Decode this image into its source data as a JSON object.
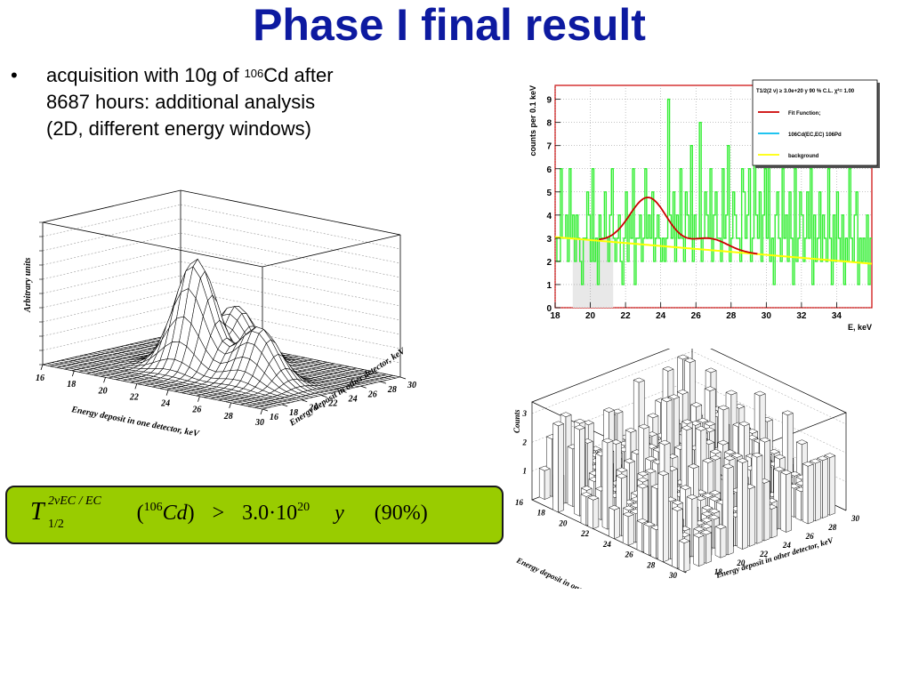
{
  "slide": {
    "title": "Phase I final result",
    "bullet_symbol": "•",
    "bullet_line1_a": "acquisition with 10g of ",
    "bullet_line1_sup": "106",
    "bullet_line1_b": "Cd after",
    "bullet_line2": "8687 hours: additional analysis",
    "bullet_line3": "(2D, different energy windows)"
  },
  "formula": {
    "T": "T",
    "sup": "2νEC / EC",
    "sub": "1/2",
    "open": "(",
    "mass": "106",
    "element": "Cd",
    "close": ")",
    "rel": ">",
    "value": "3.0·10",
    "exponent": "20",
    "unit": "y",
    "cl": "(90%)",
    "box_color": "#99cc00"
  },
  "chart_data": [
    {
      "type": "surface",
      "name": "simulated-signal-surface",
      "xlabel": "Energy deposit in one detector, keV",
      "ylabel": "Energy deposit in other detector, keV",
      "zlabel": "Arbitrary units",
      "x_ticks": [
        "16",
        "18",
        "20",
        "22",
        "24",
        "26",
        "28",
        "30"
      ],
      "y_ticks": [
        "16",
        "18",
        "20",
        "22",
        "24",
        "26",
        "28",
        "30"
      ],
      "xlim": [
        16,
        30
      ],
      "ylim": [
        16,
        30
      ],
      "peaks": [
        {
          "x": 22,
          "y": 22,
          "height": 1.0
        },
        {
          "x": 22,
          "y": 26,
          "height": 0.5
        },
        {
          "x": 26,
          "y": 22,
          "height": 0.5
        }
      ],
      "surface_color": "#000000"
    },
    {
      "type": "histogram",
      "name": "energy-spectrum-fit",
      "xlabel": "E, keV",
      "ylabel": "counts per 0.1 keV",
      "xlim": [
        18,
        36
      ],
      "ylim": [
        0,
        9.6
      ],
      "x_ticks": [
        "18",
        "20",
        "22",
        "24",
        "26",
        "28",
        "30",
        "32",
        "34"
      ],
      "y_ticks": [
        "0",
        "1",
        "2",
        "3",
        "4",
        "5",
        "6",
        "7",
        "8",
        "9"
      ],
      "bin_width": 0.1,
      "counts": [
        3,
        2,
        2,
        6,
        3,
        3,
        4,
        2,
        6,
        3,
        4,
        2,
        4,
        3,
        2,
        1,
        3,
        3,
        5,
        4,
        2,
        6,
        2,
        3,
        1,
        4,
        3,
        3,
        5,
        3,
        2,
        4,
        6,
        3,
        2,
        3,
        4,
        2,
        1,
        3,
        5,
        2,
        4,
        3,
        6,
        1,
        3,
        3,
        4,
        2,
        3,
        6,
        3,
        4,
        3,
        5,
        2,
        3,
        4,
        3,
        2,
        3,
        2,
        3,
        9,
        4,
        3,
        5,
        2,
        4,
        3,
        6,
        3,
        2,
        5,
        4,
        3,
        7,
        2,
        4,
        3,
        3,
        8,
        2,
        3,
        5,
        4,
        3,
        6,
        2,
        4,
        5,
        3,
        3,
        2,
        6,
        3,
        4,
        7,
        2,
        3,
        5,
        4,
        3,
        3,
        2,
        6,
        5,
        3,
        4,
        6,
        2,
        3,
        8,
        4,
        3,
        5,
        2,
        4,
        6,
        3,
        7,
        2,
        3,
        1,
        4,
        5,
        3,
        2,
        6,
        3,
        4,
        2,
        5,
        3,
        1,
        6,
        2,
        3,
        5,
        4,
        2,
        3,
        5,
        3,
        6,
        1,
        4,
        2,
        3,
        5,
        2,
        4,
        3,
        2,
        6,
        3,
        1,
        4,
        2,
        5,
        3,
        2,
        4,
        1,
        3,
        2,
        6,
        3,
        2,
        4,
        5,
        1,
        3,
        2,
        3,
        2,
        4,
        1,
        3
      ],
      "series": [
        {
          "name": "Fit Function;",
          "color": "#cc0000",
          "baseline_start": 3.05,
          "baseline_end": 1.9,
          "components": [
            {
              "center": 23.3,
              "sigma": 1.05,
              "amp": 2.05
            },
            {
              "center": 26.8,
              "sigma": 1.0,
              "amp": 0.5
            }
          ]
        },
        {
          "name": "106Cd(EC,EC) 106Pd",
          "color": "#00bbee"
        },
        {
          "name": "background",
          "color": "#ffff00"
        }
      ],
      "legend_header": "T1/2(2 ν) ≥ 3.0e+20 y   90 % C.L.     χ²= 1.00",
      "legend_items": [
        "Fit Function;",
        "106Cd(EC,EC) 106Pd",
        "background"
      ],
      "legend_position": "top-right",
      "histogram_color": "#33ee33",
      "excluded_window": [
        19,
        21.3
      ],
      "frame_color": "#cc0000"
    },
    {
      "type": "lego",
      "name": "measured-2d-histogram",
      "xlabel": "Energy deposit in one detector, keV",
      "ylabel": "Energy deposit in other detector, keV",
      "zlabel": "Counts",
      "x_ticks": [
        "16",
        "18",
        "20",
        "22",
        "24",
        "26",
        "28",
        "30"
      ],
      "y_ticks": [
        "18",
        "20",
        "22",
        "24",
        "26",
        "28",
        "30"
      ],
      "z_ticks": [
        "1",
        "2",
        "3"
      ],
      "xlim": [
        16,
        30
      ],
      "ylim": [
        16,
        30
      ],
      "zlim": [
        0,
        3.4
      ]
    }
  ]
}
